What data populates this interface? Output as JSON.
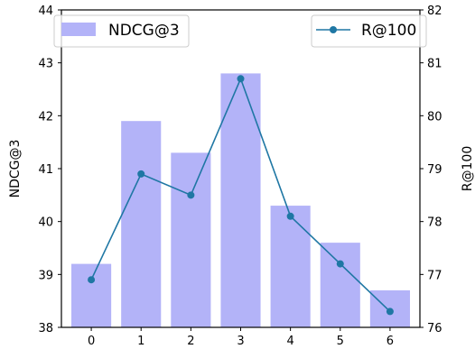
{
  "chart_data": {
    "type": "bar",
    "categories": [
      "0",
      "1",
      "2",
      "3",
      "4",
      "5",
      "6"
    ],
    "series": [
      {
        "name": "NDCG@3",
        "type": "bar",
        "axis": "left",
        "values": [
          39.2,
          41.9,
          41.3,
          42.8,
          40.3,
          39.6,
          38.7
        ]
      },
      {
        "name": "R@100",
        "type": "line",
        "axis": "right",
        "values": [
          76.9,
          78.9,
          78.5,
          80.7,
          78.1,
          77.2,
          76.3
        ]
      }
    ],
    "ylabel": "NDCG@3",
    "ylabel_right": "R@100",
    "ylim": [
      38,
      44
    ],
    "ylim_right": [
      76,
      82
    ],
    "yticks": [
      "38",
      "39",
      "40",
      "41",
      "42",
      "43",
      "44"
    ],
    "yticks_right": [
      "76",
      "77",
      "78",
      "79",
      "80",
      "81",
      "82"
    ],
    "legend_left": {
      "label": "NDCG@3",
      "placement": "top-left"
    },
    "legend_right": {
      "label": "R@100",
      "placement": "top-right"
    },
    "colors": {
      "bar": "#b3b3f8",
      "line": "#1f77a4",
      "axis": "#000000"
    },
    "grid": false
  }
}
